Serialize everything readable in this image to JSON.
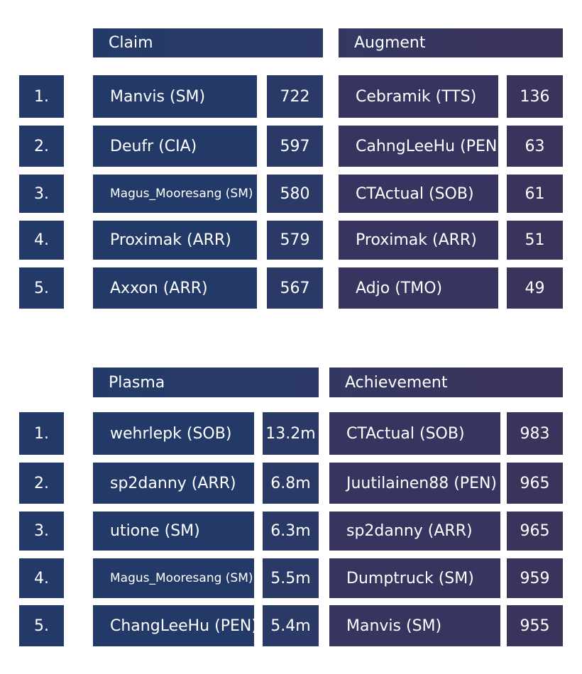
{
  "sections": [
    {
      "left_title": "Claim",
      "right_title": "Augment",
      "rows": [
        {
          "rank": "1.",
          "left_name": "Manvis (SM)",
          "left_value": "722",
          "right_name": "Cebramik (TTS)",
          "right_value": "136"
        },
        {
          "rank": "2.",
          "left_name": "Deufr (CIA)",
          "left_value": "597",
          "right_name": "CahngLeeHu (PEN)",
          "right_value": "63"
        },
        {
          "rank": "3.",
          "left_name": "Magus_Mooresang (SM)",
          "left_value": "580",
          "right_name": "CTActual (SOB)",
          "right_value": "61"
        },
        {
          "rank": "4.",
          "left_name": "Proximak (ARR)",
          "left_value": "579",
          "right_name": "Proximak (ARR)",
          "right_value": "51"
        },
        {
          "rank": "5.",
          "left_name": "Axxon (ARR)",
          "left_value": "567",
          "right_name": "Adjo (TMO)",
          "right_value": "49"
        }
      ]
    },
    {
      "left_title": "Plasma",
      "right_title": "Achievement",
      "rows": [
        {
          "rank": "1.",
          "left_name": "wehrlepk (SOB)",
          "left_value": "13.2m",
          "right_name": "CTActual (SOB)",
          "right_value": "983"
        },
        {
          "rank": "2.",
          "left_name": "sp2danny (ARR)",
          "left_value": "6.8m",
          "right_name": "Juutilainen88 (PEN)",
          "right_value": "965"
        },
        {
          "rank": "3.",
          "left_name": "utione (SM)",
          "left_value": "6.3m",
          "right_name": "sp2danny (ARR)",
          "right_value": "965"
        },
        {
          "rank": "4.",
          "left_name": "Magus_Mooresang (SM)",
          "left_value": "5.5m",
          "right_name": "Dumptruck (SM)",
          "right_value": "959"
        },
        {
          "rank": "5.",
          "left_name": "ChangLeeHu (PEN)",
          "left_value": "5.4m",
          "right_name": "Manvis (SM)",
          "right_value": "955"
        }
      ]
    }
  ]
}
